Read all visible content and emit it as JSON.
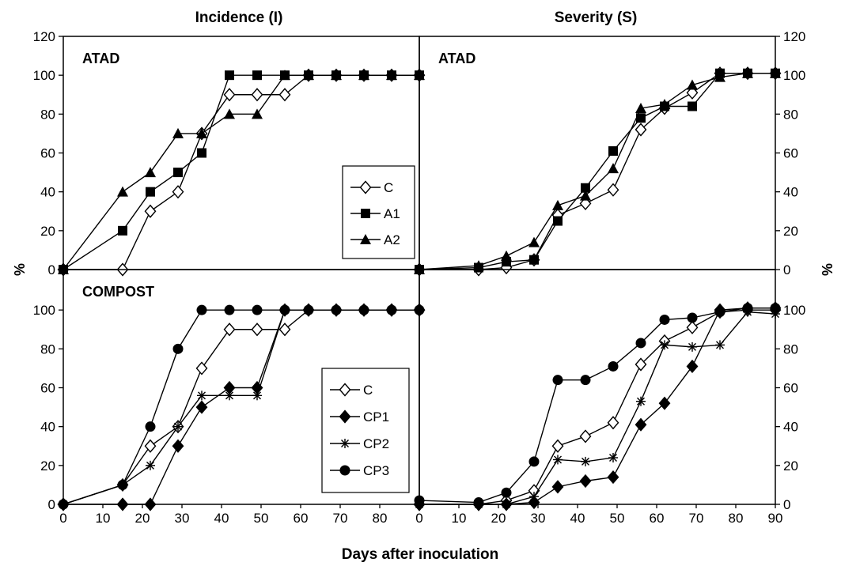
{
  "figure": {
    "col_titles": [
      "Incidence (I)",
      "Severity (S)"
    ],
    "x_label": "Days after inoculation",
    "y_label": "%"
  },
  "chart_data": [
    {
      "type": "line",
      "panel_label": "ATAD",
      "xlim": [
        0,
        90
      ],
      "ylim": [
        0,
        120
      ],
      "y_ticks": [
        0,
        20,
        40,
        60,
        80,
        100,
        120
      ],
      "x_ticks": [],
      "legend_position": "bottom-right",
      "series": [
        {
          "name": "C",
          "marker": "diamond-open",
          "x": [
            0,
            15,
            22,
            29,
            35,
            42,
            49,
            56,
            62,
            69,
            76,
            83,
            90
          ],
          "y": [
            0,
            0,
            30,
            40,
            70,
            90,
            90,
            90,
            100,
            100,
            100,
            100,
            100
          ]
        },
        {
          "name": "A1",
          "marker": "square",
          "x": [
            0,
            15,
            22,
            29,
            35,
            42,
            49,
            56,
            62,
            69,
            76,
            83,
            90
          ],
          "y": [
            0,
            20,
            40,
            50,
            60,
            100,
            100,
            100,
            100,
            100,
            100,
            100,
            100
          ]
        },
        {
          "name": "A2",
          "marker": "triangle",
          "x": [
            0,
            15,
            22,
            29,
            35,
            42,
            49,
            56,
            62,
            69,
            76,
            83,
            90
          ],
          "y": [
            0,
            40,
            50,
            70,
            70,
            80,
            80,
            100,
            100,
            100,
            100,
            100,
            100
          ]
        }
      ]
    },
    {
      "type": "line",
      "panel_label": "ATAD",
      "xlim": [
        0,
        90
      ],
      "ylim": [
        0,
        120
      ],
      "y_ticks": [
        0,
        20,
        40,
        60,
        80,
        100,
        120
      ],
      "x_ticks": [],
      "series": [
        {
          "name": "C",
          "marker": "diamond-open",
          "x": [
            0,
            15,
            22,
            29,
            35,
            42,
            49,
            56,
            62,
            69,
            76,
            83,
            90
          ],
          "y": [
            0,
            0,
            1,
            5,
            28,
            34,
            41,
            72,
            83,
            91,
            101,
            101,
            101
          ]
        },
        {
          "name": "A1",
          "marker": "square",
          "x": [
            0,
            15,
            22,
            29,
            35,
            42,
            49,
            56,
            62,
            69,
            76,
            83,
            90
          ],
          "y": [
            0,
            1,
            4,
            5,
            25,
            42,
            61,
            78,
            84,
            84,
            101,
            101,
            101
          ]
        },
        {
          "name": "A2",
          "marker": "triangle",
          "x": [
            0,
            15,
            22,
            29,
            35,
            42,
            49,
            56,
            62,
            69,
            76,
            83,
            90
          ],
          "y": [
            0,
            2,
            7,
            14,
            33,
            38,
            52,
            83,
            85,
            95,
            99,
            101,
            101
          ]
        }
      ]
    },
    {
      "type": "line",
      "panel_label": "COMPOST",
      "xlim": [
        0,
        90
      ],
      "ylim": [
        0,
        120
      ],
      "y_ticks": [
        0,
        20,
        40,
        60,
        80,
        100
      ],
      "x_ticks": [
        0,
        10,
        20,
        30,
        40,
        50,
        60,
        70,
        80
      ],
      "legend_position": "bottom-right",
      "series": [
        {
          "name": "C",
          "marker": "diamond-open",
          "x": [
            0,
            15,
            22,
            29,
            35,
            42,
            49,
            56,
            62,
            69,
            76,
            83,
            90
          ],
          "y": [
            0,
            10,
            30,
            40,
            70,
            90,
            90,
            90,
            100,
            100,
            100,
            100,
            100
          ]
        },
        {
          "name": "CP1",
          "marker": "diamond",
          "x": [
            0,
            15,
            22,
            29,
            35,
            42,
            49,
            56,
            62,
            69,
            76,
            83,
            90
          ],
          "y": [
            0,
            0,
            0,
            30,
            50,
            60,
            60,
            100,
            100,
            100,
            100,
            100,
            100
          ]
        },
        {
          "name": "CP2",
          "marker": "asterisk",
          "x": [
            0,
            15,
            22,
            29,
            35,
            42,
            49,
            56,
            62,
            69,
            76,
            83,
            90
          ],
          "y": [
            0,
            10,
            20,
            40,
            56,
            56,
            56,
            100,
            100,
            100,
            100,
            100,
            100
          ]
        },
        {
          "name": "CP3",
          "marker": "circle",
          "x": [
            0,
            15,
            22,
            29,
            35,
            42,
            49,
            56,
            62,
            69,
            76,
            83,
            90
          ],
          "y": [
            0,
            10,
            40,
            80,
            100,
            100,
            100,
            100,
            100,
            100,
            100,
            100,
            100
          ]
        }
      ]
    },
    {
      "type": "line",
      "panel_label": "",
      "xlim": [
        0,
        90
      ],
      "ylim": [
        0,
        120
      ],
      "y_ticks": [
        0,
        20,
        40,
        60,
        80,
        100
      ],
      "x_ticks": [
        0,
        10,
        20,
        30,
        40,
        50,
        60,
        70,
        80,
        90
      ],
      "series": [
        {
          "name": "C",
          "marker": "diamond-open",
          "x": [
            0,
            15,
            22,
            29,
            35,
            42,
            49,
            56,
            62,
            69,
            76,
            83,
            90
          ],
          "y": [
            0,
            0,
            2,
            7,
            30,
            35,
            42,
            72,
            84,
            91,
            99,
            100,
            100
          ]
        },
        {
          "name": "CP1",
          "marker": "diamond",
          "x": [
            0,
            15,
            22,
            29,
            35,
            42,
            49,
            56,
            62,
            69,
            76,
            83,
            90
          ],
          "y": [
            0,
            0,
            0,
            1,
            9,
            12,
            14,
            41,
            52,
            71,
            100,
            101,
            101
          ]
        },
        {
          "name": "CP2",
          "marker": "asterisk",
          "x": [
            0,
            15,
            22,
            29,
            35,
            42,
            49,
            56,
            62,
            69,
            76,
            83,
            90
          ],
          "y": [
            0,
            0,
            0,
            4,
            23,
            22,
            24,
            53,
            82,
            81,
            82,
            99,
            98
          ]
        },
        {
          "name": "CP3",
          "marker": "circle",
          "x": [
            0,
            15,
            22,
            29,
            35,
            42,
            49,
            56,
            62,
            69,
            76,
            83,
            90
          ],
          "y": [
            2,
            1,
            6,
            22,
            64,
            64,
            71,
            83,
            95,
            96,
            99,
            101,
            101
          ]
        }
      ]
    }
  ]
}
